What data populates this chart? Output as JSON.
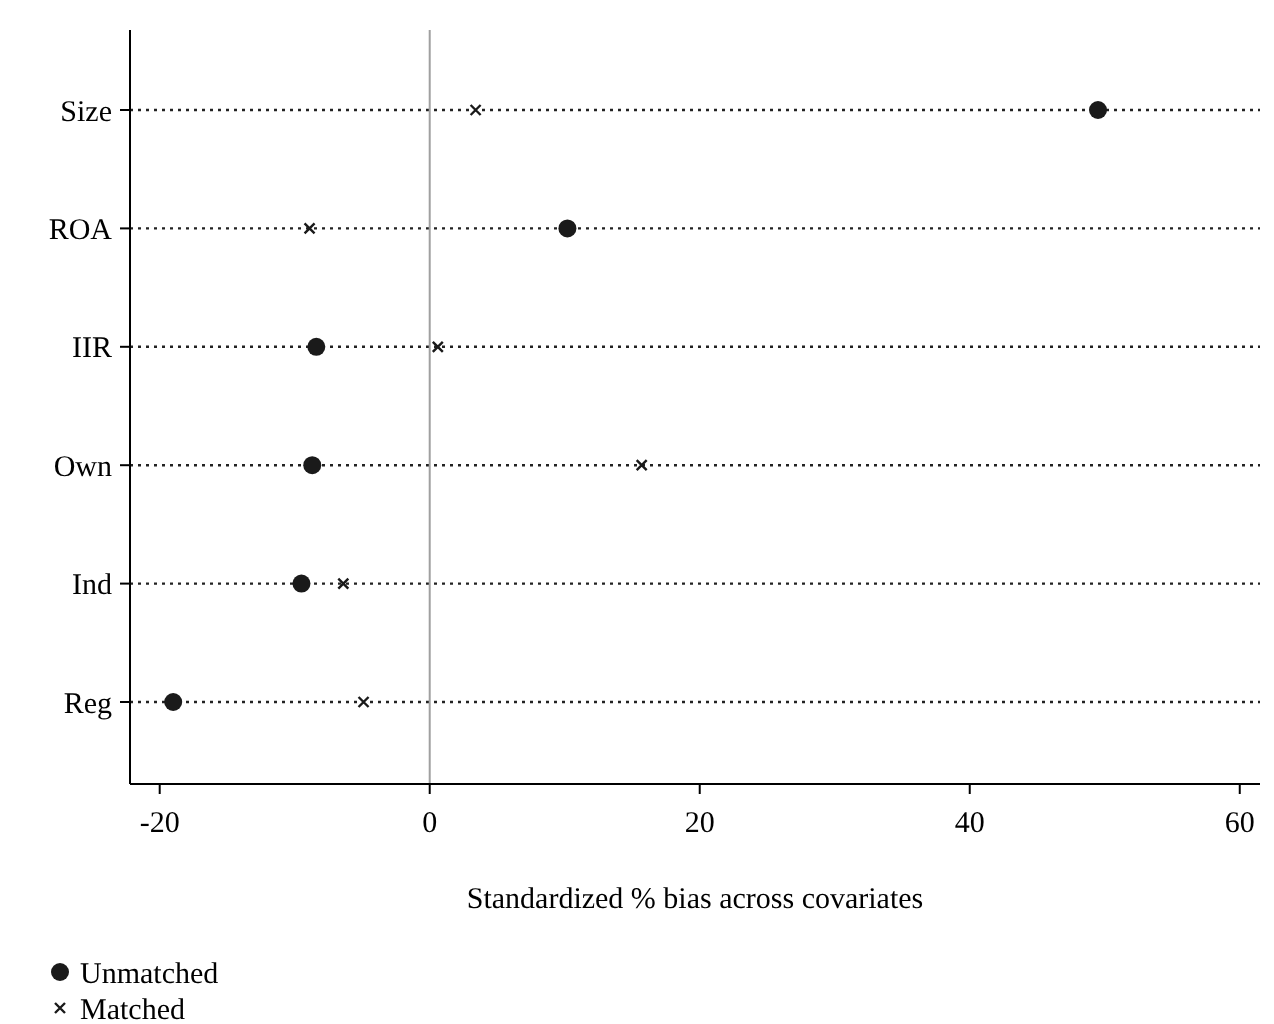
{
  "chart_data": {
    "type": "scatter",
    "orientation": "horizontal",
    "xlabel": "Standardized % bias across covariates",
    "categories": [
      "Size",
      "ROA",
      "IIR",
      "Own",
      "Ind",
      "Reg"
    ],
    "series": [
      {
        "name": "Unmatched",
        "color": "#1a1a1a",
        "marker": "circle",
        "values": [
          49.5,
          10.2,
          -8.4,
          -8.7,
          -9.5,
          -19.0
        ]
      },
      {
        "name": "Matched",
        "color": "#1a1a1a",
        "marker": "cross",
        "values": [
          3.4,
          -8.9,
          0.6,
          15.7,
          -6.4,
          -4.9
        ]
      }
    ],
    "xlim": [
      -22.2,
      61.5
    ],
    "xticks": [
      {
        "value": -20,
        "label": "-20"
      },
      0,
      20,
      40,
      60
    ],
    "ref_lines": [
      {
        "axis": "x",
        "value": 0,
        "color": "#a0a0a0"
      }
    ],
    "grid": "y",
    "legend": "bottom left"
  }
}
